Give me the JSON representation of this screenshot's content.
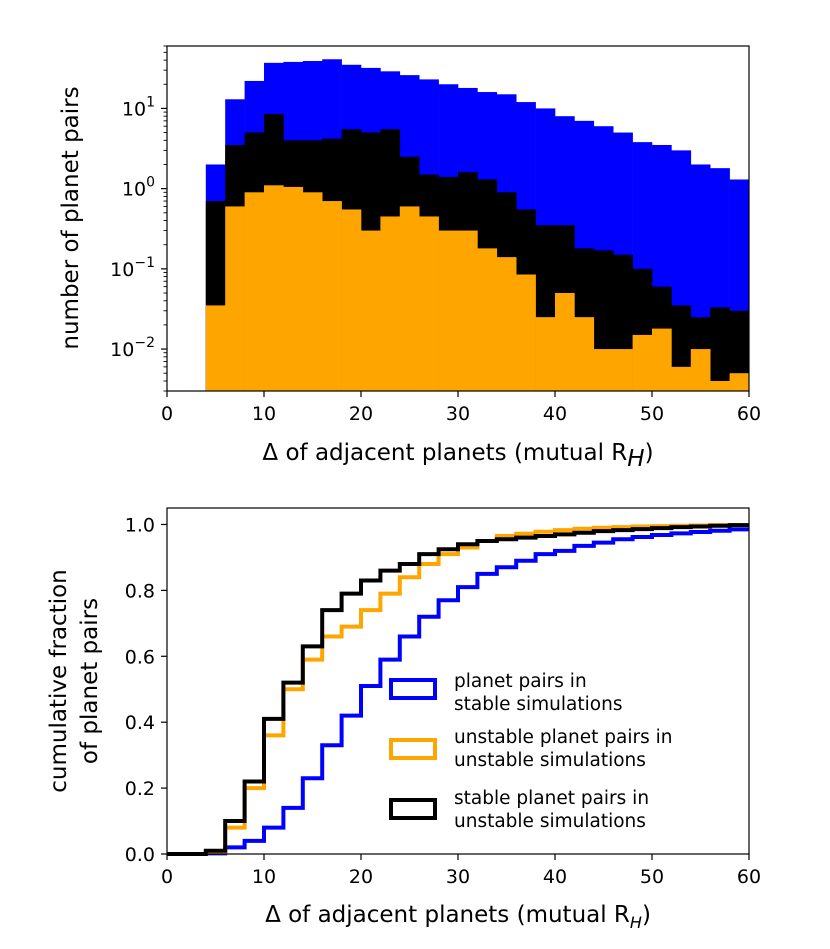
{
  "chart_data": [
    {
      "type": "bar",
      "subtype": "stacked-step-histogram",
      "yscale": "log",
      "xlabel": "Δ of adjacent planets (mutual R",
      "xlabel_sub": "H",
      "xlabel_close": ")",
      "ylabel": "number of planet pairs",
      "xlim": [
        0,
        60
      ],
      "ylim": [
        0.003,
        60
      ],
      "x_ticks": [
        "0",
        "10",
        "20",
        "30",
        "40",
        "50",
        "60"
      ],
      "y_ticks": [
        {
          "value": 10,
          "base": "10",
          "exp": "1"
        },
        {
          "value": 1,
          "base": "10",
          "exp": "0"
        },
        {
          "value": 0.1,
          "base": "10",
          "exp": "−1"
        },
        {
          "value": 0.01,
          "base": "10",
          "exp": "−2"
        }
      ],
      "bin_edges": [
        4,
        6,
        8,
        10,
        12,
        14,
        16,
        18,
        20,
        22,
        24,
        26,
        28,
        30,
        32,
        34,
        36,
        38,
        40,
        42,
        44,
        46,
        48,
        50,
        52,
        54,
        56,
        58,
        60
      ],
      "series": [
        {
          "name": "planet pairs in stable simulations",
          "color": "#0000ff",
          "values": [
            2.0,
            13,
            22,
            37,
            38,
            39,
            41,
            35,
            32,
            29,
            26,
            23,
            20,
            18,
            16,
            15,
            12,
            10,
            8,
            7,
            6,
            5,
            3.8,
            3.5,
            3,
            2,
            1.8,
            1.3
          ]
        },
        {
          "name": "stable planet pairs in unstable simulations",
          "color": "#000000",
          "values": [
            0.7,
            3.5,
            5,
            8.5,
            4,
            4,
            4.2,
            5.5,
            5,
            5.5,
            2.5,
            1.5,
            1.4,
            1.6,
            1.3,
            0.9,
            0.55,
            0.35,
            0.35,
            0.18,
            0.17,
            0.15,
            0.1,
            0.06,
            0.035,
            0.025,
            0.033,
            0.03
          ]
        },
        {
          "name": "unstable planet pairs in unstable simulations",
          "color": "#ffa500",
          "values": [
            0.035,
            0.6,
            0.9,
            1.1,
            1.05,
            0.9,
            0.7,
            0.55,
            0.3,
            0.45,
            0.6,
            0.45,
            0.3,
            0.3,
            0.18,
            0.14,
            0.085,
            0.025,
            0.05,
            0.025,
            0.01,
            0.01,
            0.015,
            0.018,
            0.006,
            0.01,
            0.004,
            0.005
          ]
        }
      ]
    },
    {
      "type": "line",
      "subtype": "cumulative-step",
      "xlabel": "Δ of adjacent planets (mutual R",
      "xlabel_sub": "H",
      "xlabel_close": ")",
      "ylabel_line1": "cumulative fraction",
      "ylabel_line2": "of planet pairs",
      "xlim": [
        0,
        60
      ],
      "ylim": [
        0,
        1.05
      ],
      "x_ticks": [
        "0",
        "10",
        "20",
        "30",
        "40",
        "50",
        "60"
      ],
      "y_ticks": [
        "0.0",
        "0.2",
        "0.4",
        "0.6",
        "0.8",
        "1.0"
      ],
      "legend_position": "center-right",
      "bin_edges": [
        0,
        2,
        4,
        6,
        8,
        10,
        12,
        14,
        16,
        18,
        20,
        22,
        24,
        26,
        28,
        30,
        32,
        34,
        36,
        38,
        40,
        42,
        44,
        46,
        48,
        50,
        52,
        54,
        56,
        58,
        60
      ],
      "series": [
        {
          "name": "planet pairs in stable simulations",
          "legend_line1": "planet pairs in",
          "legend_line2": "stable simulations",
          "color": "#0000ff",
          "values": [
            0,
            0,
            0.002,
            0.02,
            0.04,
            0.08,
            0.14,
            0.23,
            0.33,
            0.42,
            0.51,
            0.59,
            0.66,
            0.72,
            0.77,
            0.81,
            0.85,
            0.87,
            0.89,
            0.91,
            0.92,
            0.935,
            0.945,
            0.955,
            0.962,
            0.968,
            0.973,
            0.977,
            0.981,
            0.985
          ]
        },
        {
          "name": "unstable planet pairs in unstable simulations",
          "legend_line1": "unstable planet pairs in",
          "legend_line2": "unstable simulations",
          "color": "#ffa500",
          "values": [
            0,
            0,
            0.005,
            0.08,
            0.2,
            0.36,
            0.5,
            0.59,
            0.66,
            0.69,
            0.74,
            0.79,
            0.84,
            0.88,
            0.91,
            0.93,
            0.95,
            0.965,
            0.972,
            0.978,
            0.983,
            0.987,
            0.99,
            0.992,
            0.994,
            0.995,
            0.996,
            0.997,
            0.998,
            0.998
          ]
        },
        {
          "name": "stable planet pairs in unstable simulations",
          "legend_line1": "stable planet pairs in",
          "legend_line2": "unstable simulations",
          "color": "#000000",
          "values": [
            0,
            0,
            0.01,
            0.1,
            0.22,
            0.41,
            0.52,
            0.63,
            0.74,
            0.79,
            0.83,
            0.86,
            0.88,
            0.91,
            0.925,
            0.94,
            0.95,
            0.955,
            0.96,
            0.965,
            0.97,
            0.975,
            0.98,
            0.983,
            0.986,
            0.989,
            0.992,
            0.994,
            0.996,
            0.998
          ]
        }
      ]
    }
  ]
}
